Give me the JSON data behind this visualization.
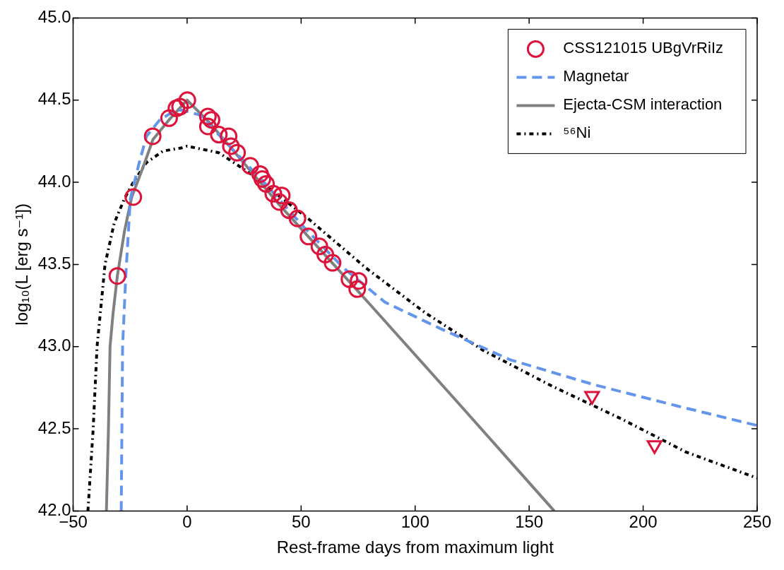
{
  "chart_data": {
    "type": "line",
    "xlabel": "Rest-frame days from maximum light",
    "ylabel": "log₁₀(L [erg s⁻¹])",
    "xlim": [
      -50,
      250
    ],
    "xticks": [
      -50,
      0,
      50,
      100,
      150,
      200,
      250
    ],
    "ylim": [
      42,
      45
    ],
    "yticks": [
      {
        "value": 42,
        "label": "42.0"
      },
      {
        "value": 42.5,
        "label": "42.5"
      },
      {
        "value": 43,
        "label": "43.0"
      },
      {
        "value": 43.5,
        "label": "43.5"
      },
      {
        "value": 44,
        "label": "44.0"
      },
      {
        "value": 44.5,
        "label": "44.5"
      },
      {
        "value": 45,
        "label": "45.0"
      }
    ],
    "grid": false,
    "legend": "top right",
    "series": [
      {
        "name": "CSS121015 UBgVrRiIz",
        "type": "scatter",
        "marker": "circle",
        "color": "#dc143c",
        "x": [
          -30.6,
          -23.6,
          -15.1,
          -7.9,
          -4.7,
          -3.1,
          0.1,
          9.1,
          10.7,
          9.1,
          13.9,
          18.2,
          19.2,
          21.9,
          27.7,
          32,
          33,
          34.6,
          37.8,
          41.5,
          40.4,
          44.7,
          48.4,
          53.2,
          58,
          60.6,
          63.8,
          71.2,
          75.2,
          74.6
        ],
        "values": [
          43.43,
          43.91,
          44.28,
          44.39,
          44.45,
          44.46,
          44.5,
          44.4,
          44.38,
          44.34,
          44.29,
          44.28,
          44.22,
          44.18,
          44.1,
          44.05,
          44.02,
          43.99,
          43.93,
          43.92,
          43.88,
          43.83,
          43.78,
          43.67,
          43.61,
          43.56,
          43.51,
          43.41,
          43.4,
          43.35
        ]
      },
      {
        "type": "scatter",
        "marker": "triangle",
        "color": "#dc143c",
        "x": [
          177.6,
          205
        ],
        "values": [
          42.7,
          42.4
        ]
      },
      {
        "name": "Magnetar",
        "type": "line",
        "line_style": "dashed",
        "color": "#6495ed",
        "x": [
          -28.9,
          -28.3,
          -26.9,
          -24.9,
          -21,
          -17.8,
          -12,
          -6,
          -2.5,
          5.4,
          18,
          35,
          51,
          68.5,
          86.8,
          111,
          141.7,
          178,
          214.6,
          250
        ],
        "values": [
          42.0,
          43.0,
          43.43,
          43.9,
          44.12,
          44.28,
          44.38,
          44.43,
          44.44,
          44.41,
          44.23,
          43.98,
          43.73,
          43.48,
          43.27,
          43.11,
          42.92,
          42.77,
          42.64,
          42.52
        ]
      },
      {
        "name": "Ejecta-CSM interaction",
        "type": "line",
        "line_style": "solid",
        "color": "#808080",
        "x": [
          -35.4,
          -34.5,
          -33.8,
          -32.5,
          -30.6,
          -27.5,
          -24.3,
          -19.1,
          -15,
          -7.3,
          0,
          10,
          40,
          80,
          120,
          161
        ],
        "values": [
          42.0,
          42.5,
          43.0,
          43.2,
          43.43,
          43.7,
          43.91,
          44.1,
          44.26,
          44.39,
          44.5,
          44.36,
          43.87,
          43.26,
          42.64,
          42.0
        ]
      },
      {
        "name": "⁵⁶Ni",
        "type": "line",
        "line_style": "dotted",
        "color": "#000000",
        "x": [
          -43.5,
          -41.2,
          -39.5,
          -36,
          -32,
          -27.5,
          -23.6,
          -17.8,
          -10.6,
          -2.2,
          0,
          13.9,
          27,
          53,
          78.3,
          104,
          129.5,
          160,
          190.5,
          218.5,
          250
        ],
        "values": [
          42.0,
          42.5,
          43.0,
          43.5,
          43.75,
          43.9,
          44.0,
          44.12,
          44.19,
          44.21,
          44.22,
          44.18,
          44.06,
          43.78,
          43.48,
          43.21,
          42.98,
          42.76,
          42.56,
          42.36,
          42.2
        ]
      }
    ]
  }
}
